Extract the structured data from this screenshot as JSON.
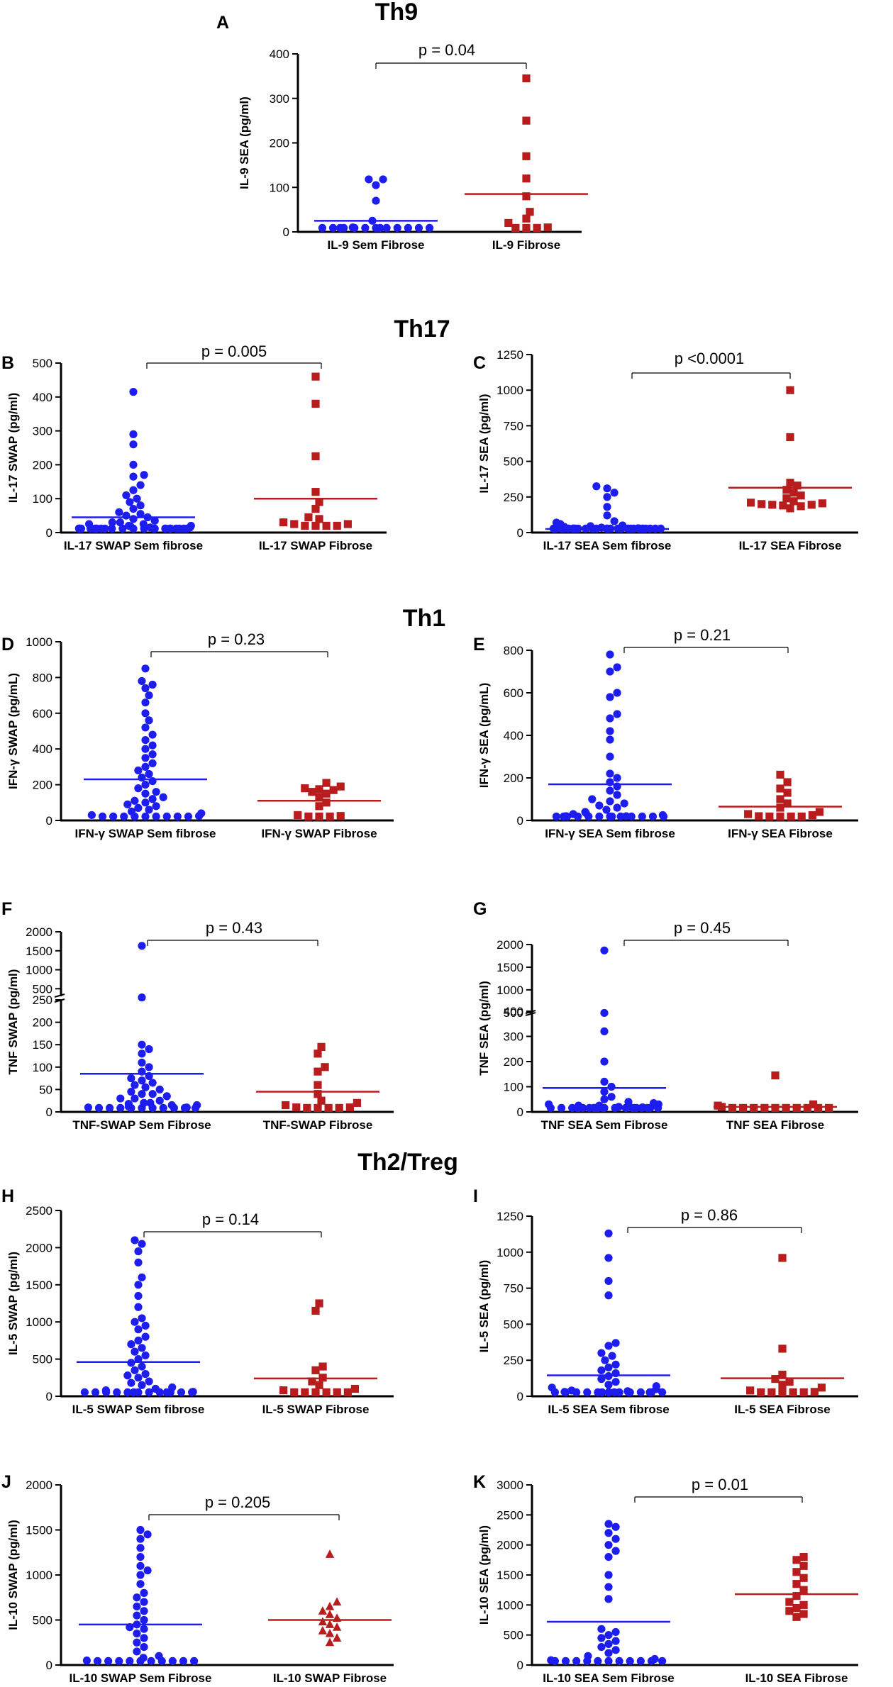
{
  "section_titles": [
    "Th9",
    "Th17",
    "Th1",
    "Th2/Treg"
  ],
  "colors": {
    "series_1": "#1d1df0",
    "series_2": "#b81c1c",
    "axis": "#000000"
  },
  "chart_data": [
    {
      "id": "A",
      "type": "scatter",
      "letter": "A",
      "ylabel": "IL-9 SEA (pg/ml)",
      "ylim": [
        0,
        400
      ],
      "yticks": [
        "0",
        "100",
        "200",
        "300",
        "400"
      ],
      "pvalue": "p = 0.04",
      "categories": [
        "IL-9 Sem Fibrose",
        "IL-9 Fibrose"
      ],
      "series": [
        {
          "name": "IL-9 Sem Fibrose",
          "marker": "circle",
          "mean": 25,
          "values": [
            2,
            2,
            2,
            2,
            2,
            2,
            2,
            2,
            2,
            2,
            2,
            2,
            5,
            10,
            25,
            70,
            105,
            118,
            118
          ]
        },
        {
          "name": "IL-9 Fibrose",
          "marker": "square",
          "mean": 85,
          "values": [
            5,
            5,
            5,
            10,
            20,
            30,
            45,
            80,
            120,
            170,
            250,
            345
          ]
        }
      ]
    },
    {
      "id": "B",
      "type": "scatter",
      "letter": "B",
      "ylabel": "IL-17 SWAP (pg/ml)",
      "ylim": [
        0,
        500
      ],
      "yticks": [
        "0",
        "100",
        "200",
        "300",
        "400",
        "500"
      ],
      "pvalue": "p = 0.005",
      "categories": [
        "IL-17 SWAP Sem fibrose",
        "IL-17 SWAP Fibrose"
      ],
      "series": [
        {
          "name": "IL-17 SWAP Sem fibrose",
          "marker": "circle",
          "mean": 45,
          "values": [
            2,
            2,
            2,
            2,
            2,
            2,
            2,
            2,
            2,
            2,
            3,
            3,
            3,
            5,
            5,
            5,
            5,
            8,
            8,
            10,
            10,
            10,
            12,
            15,
            15,
            18,
            20,
            20,
            25,
            25,
            30,
            30,
            35,
            40,
            45,
            50,
            55,
            60,
            70,
            80,
            90,
            100,
            110,
            125,
            140,
            165,
            170,
            200,
            260,
            290,
            415
          ]
        },
        {
          "name": "IL-17 SWAP Fibrose",
          "marker": "square",
          "mean": 100,
          "values": [
            20,
            20,
            20,
            20,
            25,
            25,
            30,
            40,
            45,
            70,
            90,
            120,
            225,
            380,
            460
          ]
        }
      ]
    },
    {
      "id": "C",
      "type": "scatter",
      "letter": "C",
      "ylabel": "IL-17 SEA (pg/ml)",
      "ylim": [
        0,
        1250
      ],
      "yticks": [
        "0",
        "250",
        "500",
        "750",
        "1000",
        "1250"
      ],
      "pvalue": "p <0.0001",
      "categories": [
        "IL-17 SEA Sem fibrose",
        "IL-17 SEA Fibrose"
      ],
      "series": [
        {
          "name": "IL-17 SEA Sem fibrose",
          "marker": "circle",
          "mean": 25,
          "values": [
            2,
            2,
            2,
            2,
            2,
            2,
            2,
            2,
            3,
            3,
            3,
            3,
            4,
            4,
            5,
            5,
            5,
            6,
            6,
            8,
            8,
            10,
            10,
            12,
            12,
            15,
            15,
            18,
            20,
            20,
            25,
            25,
            30,
            30,
            35,
            40,
            45,
            50,
            60,
            70,
            80,
            120,
            180,
            250,
            280,
            310,
            325
          ]
        },
        {
          "name": "IL-17 SEA Fibrose",
          "marker": "square",
          "mean": 315,
          "values": [
            170,
            185,
            190,
            195,
            195,
            200,
            205,
            210,
            220,
            240,
            260,
            280,
            300,
            330,
            350,
            670,
            1000
          ]
        }
      ]
    },
    {
      "id": "D",
      "type": "scatter",
      "letter": "D",
      "ylabel": "IFN-γ  SWAP (pg/mL)",
      "ylim": [
        0,
        1000
      ],
      "yticks": [
        "0",
        "200",
        "400",
        "600",
        "800",
        "1000"
      ],
      "pvalue": "p = 0.23",
      "categories": [
        "IFN-γ SWAP Sem fibrose",
        "IFN-γ SWAP Fibrose"
      ],
      "series": [
        {
          "name": "IFN-γ SWAP Sem fibrose",
          "marker": "circle",
          "mean": 230,
          "values": [
            10,
            10,
            10,
            10,
            10,
            15,
            15,
            20,
            20,
            25,
            30,
            40,
            50,
            60,
            70,
            80,
            90,
            100,
            110,
            120,
            130,
            150,
            160,
            180,
            200,
            220,
            240,
            260,
            280,
            300,
            320,
            350,
            370,
            400,
            420,
            450,
            480,
            520,
            560,
            600,
            660,
            700,
            740,
            760,
            780,
            850
          ]
        },
        {
          "name": "IFN-γ SWAP Fibrose",
          "marker": "square",
          "mean": 110,
          "values": [
            15,
            20,
            20,
            25,
            30,
            80,
            100,
            130,
            150,
            160,
            170,
            175,
            180,
            190,
            210
          ]
        }
      ]
    },
    {
      "id": "E",
      "type": "scatter",
      "letter": "E",
      "ylabel": "IFN-γ  SEA (pg/mL)",
      "ylim": [
        0,
        800
      ],
      "yticks": [
        "0",
        "200",
        "400",
        "600",
        "800"
      ],
      "pvalue": "p = 0.21",
      "categories": [
        "IFN-γ SEA Sem fibrose",
        "IFN-γ SEA Fibrose"
      ],
      "series": [
        {
          "name": "IFN-γ SEA Sem fibrose",
          "marker": "circle",
          "mean": 170,
          "values": [
            5,
            5,
            5,
            5,
            5,
            8,
            8,
            10,
            10,
            10,
            12,
            15,
            15,
            20,
            20,
            25,
            30,
            35,
            40,
            50,
            60,
            70,
            80,
            90,
            100,
            120,
            140,
            160,
            180,
            200,
            220,
            300,
            380,
            420,
            480,
            500,
            580,
            600,
            700,
            720,
            780
          ]
        },
        {
          "name": "IFN-γ SEA Fibrose",
          "marker": "square",
          "mean": 65,
          "values": [
            5,
            5,
            10,
            15,
            20,
            25,
            30,
            40,
            60,
            80,
            100,
            130,
            150,
            180,
            215
          ]
        }
      ]
    },
    {
      "id": "F",
      "type": "scatter",
      "letter": "F",
      "ylabel": "TNF SWAP (pg/ml)",
      "broken_axis": true,
      "ylim_lower": [
        0,
        250
      ],
      "ylim_upper": [
        300,
        2000
      ],
      "yticks_lower": [
        "0",
        "50",
        "100",
        "150",
        "200",
        "250"
      ],
      "yticks_upper": [
        "500",
        "1000",
        "1500",
        "2000"
      ],
      "pvalue": "p = 0.43",
      "categories": [
        "TNF-SWAP Sem Fibrose",
        "TNF-SWAP Fibrose"
      ],
      "series": [
        {
          "name": "TNF-SWAP Sem Fibrose",
          "marker": "circle",
          "mean": 85,
          "values": [
            2,
            2,
            2,
            2,
            3,
            3,
            5,
            5,
            5,
            8,
            10,
            10,
            12,
            15,
            15,
            18,
            20,
            20,
            25,
            30,
            30,
            35,
            40,
            40,
            45,
            50,
            55,
            60,
            65,
            70,
            75,
            80,
            90,
            100,
            110,
            130,
            140,
            150,
            270,
            1630
          ]
        },
        {
          "name": "TNF-SWAP Fibrose",
          "marker": "square",
          "mean": 45,
          "values": [
            5,
            5,
            5,
            8,
            10,
            10,
            15,
            20,
            25,
            40,
            60,
            90,
            100,
            130,
            145
          ]
        }
      ]
    },
    {
      "id": "G",
      "type": "scatter",
      "letter": "G",
      "ylabel": "TNF SEA (pg/ml)",
      "broken_axis": true,
      "ylim_lower": [
        0,
        400
      ],
      "ylim_upper": [
        450,
        2000
      ],
      "yticks_lower": [
        "0",
        "100",
        "200",
        "300",
        "400"
      ],
      "yticks_upper": [
        "500",
        "1000",
        "1500",
        "2000"
      ],
      "pvalue": "p = 0.45",
      "categories": [
        "TNF SEA Sem Fibrose",
        "TNF SEA Fibrose"
      ],
      "series": [
        {
          "name": "TNF SEA Sem Fibrose",
          "marker": "circle",
          "mean": 95,
          "values": [
            2,
            2,
            2,
            2,
            2,
            2,
            3,
            3,
            3,
            3,
            5,
            5,
            5,
            5,
            8,
            8,
            10,
            10,
            10,
            12,
            12,
            15,
            15,
            18,
            20,
            20,
            25,
            25,
            30,
            30,
            35,
            40,
            50,
            60,
            80,
            100,
            120,
            200,
            320,
            490,
            1870
          ]
        },
        {
          "name": "TNF SEA Fibrose",
          "marker": "square",
          "mean": 20,
          "values": [
            2,
            2,
            3,
            5,
            5,
            8,
            10,
            10,
            12,
            15,
            20,
            25,
            30,
            145
          ]
        }
      ]
    },
    {
      "id": "H",
      "type": "scatter",
      "letter": "H",
      "ylabel": "IL-5 SWAP (pg/ml)",
      "ylim": [
        0,
        2500
      ],
      "yticks": [
        "0",
        "500",
        "1000",
        "1500",
        "2000",
        "2500"
      ],
      "pvalue": "p = 0.14",
      "categories": [
        "IL-5 SWAP Sem fibrose",
        "IL-5 SWAP Fibrose"
      ],
      "series": [
        {
          "name": "IL-5 SWAP Sem fibrose",
          "marker": "circle",
          "mean": 460,
          "values": [
            10,
            10,
            10,
            10,
            10,
            10,
            15,
            15,
            20,
            20,
            30,
            40,
            50,
            60,
            80,
            100,
            120,
            150,
            180,
            200,
            250,
            280,
            300,
            350,
            400,
            450,
            500,
            550,
            600,
            650,
            700,
            750,
            800,
            900,
            950,
            1000,
            1050,
            1200,
            1350,
            1500,
            1600,
            1800,
            1950,
            2050,
            2100
          ]
        },
        {
          "name": "IL-5 SWAP Fibrose",
          "marker": "square",
          "mean": 240,
          "values": [
            10,
            10,
            20,
            30,
            40,
            50,
            80,
            100,
            150,
            200,
            250,
            350,
            400,
            1150,
            1250
          ]
        }
      ]
    },
    {
      "id": "I",
      "type": "scatter",
      "letter": "I",
      "ylabel": "IL-5 SEA (pg/ml)",
      "ylim": [
        0,
        1250
      ],
      "yticks": [
        "0",
        "250",
        "500",
        "750",
        "1000",
        "1250"
      ],
      "pvalue": "p = 0.86",
      "categories": [
        "IL-5 SEA Sem fibrose",
        "IL-5 SEA Fibrose"
      ],
      "series": [
        {
          "name": "IL-5 SEA Sem fibrose",
          "marker": "circle",
          "mean": 145,
          "values": [
            5,
            5,
            5,
            5,
            5,
            8,
            8,
            10,
            10,
            10,
            12,
            15,
            15,
            20,
            20,
            25,
            30,
            35,
            40,
            50,
            60,
            70,
            80,
            100,
            120,
            140,
            160,
            180,
            200,
            220,
            250,
            280,
            300,
            350,
            370,
            700,
            800,
            960,
            1130
          ]
        },
        {
          "name": "IL-5 SEA Fibrose",
          "marker": "square",
          "mean": 125,
          "values": [
            5,
            10,
            15,
            20,
            25,
            30,
            40,
            60,
            80,
            100,
            120,
            150,
            330,
            960
          ]
        }
      ]
    },
    {
      "id": "J",
      "type": "scatter",
      "letter": "J",
      "ylabel": "IL-10 SWAP (pg/ml)",
      "ylim": [
        0,
        2000
      ],
      "yticks": [
        "0",
        "500",
        "1000",
        "1500",
        "2000"
      ],
      "pvalue": "p = 0.205",
      "categories": [
        "IL-10 SWAP Sem Fibrose",
        "IL-10 SWAP Fibrose"
      ],
      "series": [
        {
          "name": "IL-10 SWAP Sem Fibrose",
          "marker": "circle",
          "mean": 450,
          "values": [
            10,
            10,
            10,
            10,
            10,
            10,
            10,
            15,
            20,
            30,
            50,
            80,
            100,
            150,
            200,
            250,
            300,
            350,
            400,
            420,
            450,
            500,
            550,
            600,
            650,
            700,
            750,
            800,
            900,
            1000,
            1050,
            1100,
            1200,
            1300,
            1400,
            1450,
            1500
          ]
        },
        {
          "name": "IL-10 SWAP Fibrose",
          "marker": "triangle",
          "mean": 500,
          "values": [
            250,
            300,
            350,
            380,
            420,
            450,
            480,
            520,
            560,
            600,
            650,
            700,
            1230
          ]
        }
      ]
    },
    {
      "id": "K",
      "type": "scatter",
      "letter": "K",
      "ylabel": "IL-10 SEA (pg/ml)",
      "ylim": [
        0,
        3000
      ],
      "yticks": [
        "0",
        "500",
        "1000",
        "1500",
        "2000",
        "2500",
        "3000"
      ],
      "pvalue": "p = 0.01",
      "categories": [
        "IL-10 SEA Sem Fibrose",
        "IL-10 SEA Fibrose"
      ],
      "series": [
        {
          "name": "IL-10 SEA Sem Fibrose",
          "marker": "circle",
          "mean": 720,
          "values": [
            10,
            10,
            10,
            10,
            10,
            10,
            10,
            15,
            20,
            30,
            50,
            80,
            100,
            150,
            200,
            250,
            300,
            350,
            400,
            450,
            500,
            550,
            600,
            1100,
            1300,
            1500,
            1800,
            1900,
            2000,
            2100,
            2200,
            2300,
            2350
          ]
        },
        {
          "name": "IL-10 SEA Fibrose",
          "marker": "square",
          "mean": 1180,
          "values": [
            800,
            850,
            900,
            950,
            1000,
            1050,
            1150,
            1250,
            1350,
            1450,
            1550,
            1650,
            1750,
            1800
          ]
        }
      ]
    }
  ]
}
